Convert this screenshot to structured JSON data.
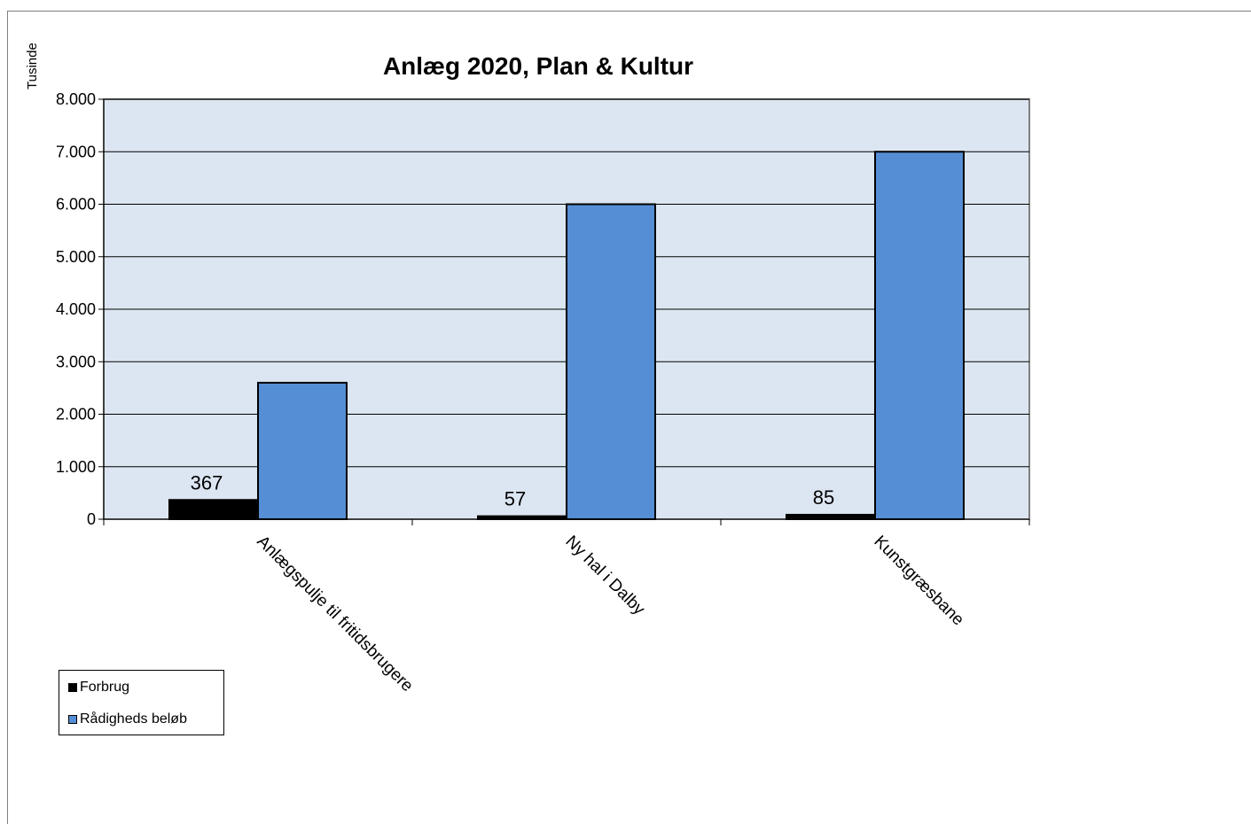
{
  "chart_data": {
    "type": "bar",
    "title": "Anlæg 2020, Plan & Kultur",
    "ylabel": "Tusinde",
    "ylim": [
      0,
      8000
    ],
    "yticks": [
      "0",
      "1.000",
      "2.000",
      "3.000",
      "4.000",
      "5.000",
      "6.000",
      "7.000",
      "8.000"
    ],
    "categories": [
      "Anlægspulje til fritidsbrugere",
      "Ny hal i Dalby",
      "Kunstgræsbane"
    ],
    "series": [
      {
        "name": "Forbrug",
        "values": [
          367,
          57,
          85
        ],
        "labels": [
          "367",
          "57",
          "85"
        ],
        "color": "#000000"
      },
      {
        "name": "Rådigheds beløb",
        "values": [
          2600,
          6000,
          7000
        ],
        "color": "#558ed5"
      }
    ],
    "plot_background": "#dce6f2",
    "grid": true,
    "legend_position": "bottom-left"
  }
}
